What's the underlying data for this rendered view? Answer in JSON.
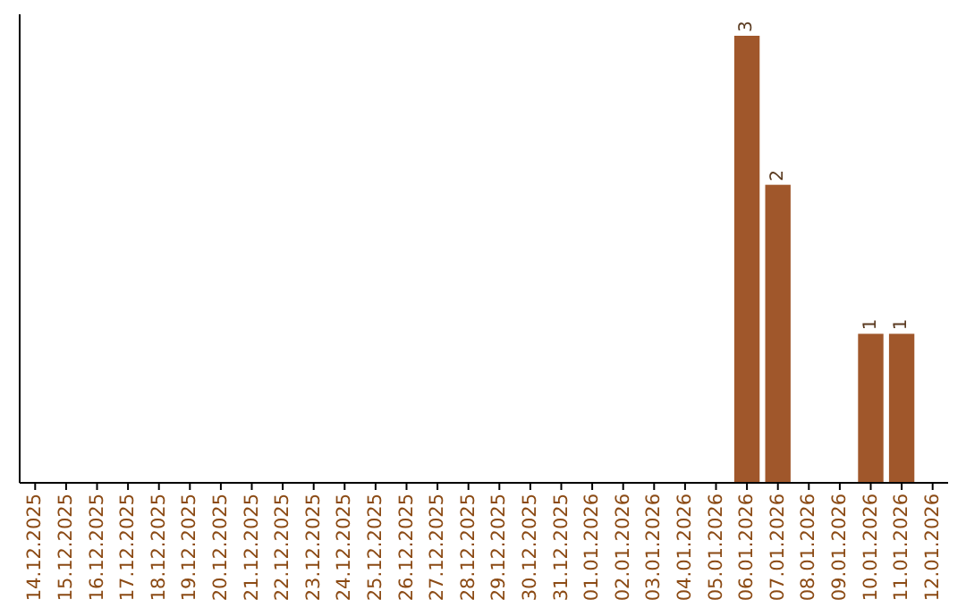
{
  "chart_data": {
    "type": "bar",
    "categories": [
      "14.12.2025",
      "15.12.2025",
      "16.12.2025",
      "17.12.2025",
      "18.12.2025",
      "19.12.2025",
      "20.12.2025",
      "21.12.2025",
      "22.12.2025",
      "23.12.2025",
      "24.12.2025",
      "25.12.2025",
      "26.12.2025",
      "27.12.2025",
      "28.12.2025",
      "29.12.2025",
      "30.12.2025",
      "31.12.2025",
      "01.01.2026",
      "02.01.2026",
      "03.01.2026",
      "04.01.2026",
      "05.01.2026",
      "06.01.2026",
      "07.01.2026",
      "08.01.2026",
      "09.01.2026",
      "10.01.2026",
      "11.01.2026",
      "12.01.2026"
    ],
    "values": [
      null,
      null,
      null,
      null,
      null,
      null,
      null,
      null,
      null,
      null,
      null,
      null,
      null,
      null,
      null,
      null,
      null,
      null,
      null,
      null,
      null,
      null,
      null,
      3,
      2,
      null,
      null,
      1,
      1,
      null
    ],
    "data_labels": true,
    "color": "#a0572b",
    "tick_labels": "x"
  }
}
